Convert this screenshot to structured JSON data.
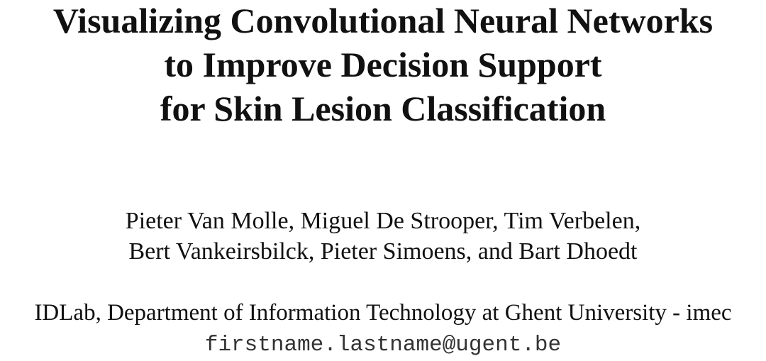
{
  "title": {
    "line1": "Visualizing Convolutional Neural Networks",
    "line2": "to Improve Decision Support",
    "line3": "for Skin Lesion Classification"
  },
  "authors": {
    "line1": "Pieter Van Molle, Miguel De Strooper, Tim Verbelen,",
    "line2": "Bert Vankeirsbilck, Pieter Simoens, and Bart Dhoedt"
  },
  "affiliation": "IDLab, Department of Information Technology at Ghent University - imec",
  "email": "firstname.lastname@ugent.be"
}
